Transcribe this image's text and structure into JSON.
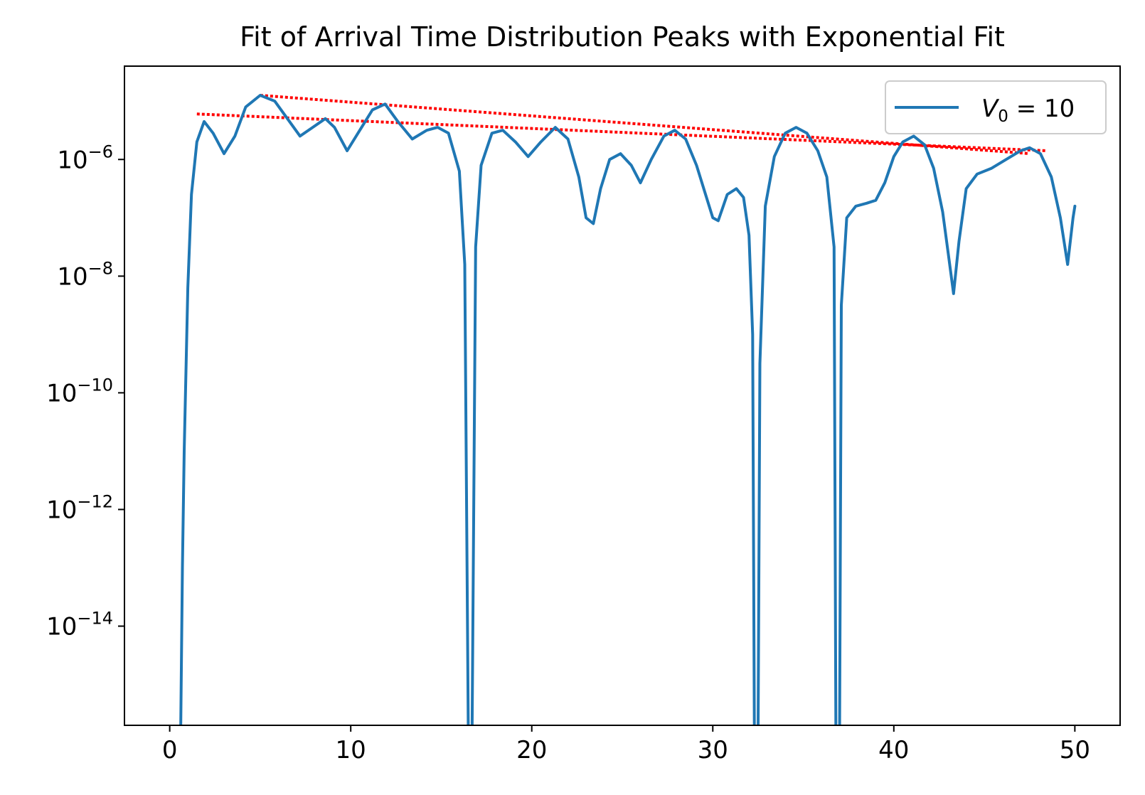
{
  "chart_data": {
    "type": "line",
    "title": "Fit of Arrival Time Distribution Peaks with Exponential Fit",
    "xlabel": "",
    "ylabel": "",
    "y_scale": "log",
    "xlim": [
      -2.5,
      52.5
    ],
    "ylim_log10": [
      -15.7,
      -4.4
    ],
    "x_ticks": [
      0,
      10,
      20,
      30,
      40,
      50
    ],
    "y_ticks": [
      {
        "exp": -6,
        "base": "10",
        "sup": "−6"
      },
      {
        "exp": -8,
        "base": "10",
        "sup": "−8"
      },
      {
        "exp": -10,
        "base": "10",
        "sup": "−10"
      },
      {
        "exp": -12,
        "base": "10",
        "sup": "−12"
      },
      {
        "exp": -14,
        "base": "10",
        "sup": "−14"
      }
    ],
    "legend": {
      "placement": "upper right",
      "label_prefix": "V",
      "label_sub": "0",
      "label_rest": " = 10"
    },
    "series": [
      {
        "name": "V0 = 10",
        "color": "#1f77b4",
        "log10_points": [
          [
            0.6,
            -16
          ],
          [
            0.7,
            -13.0
          ],
          [
            0.8,
            -11.0
          ],
          [
            1.0,
            -8.2
          ],
          [
            1.2,
            -6.6
          ],
          [
            1.5,
            -5.7
          ],
          [
            1.9,
            -5.35
          ],
          [
            2.4,
            -5.55
          ],
          [
            3.0,
            -5.9
          ],
          [
            3.6,
            -5.6
          ],
          [
            4.2,
            -5.1
          ],
          [
            5.0,
            -4.9
          ],
          [
            5.8,
            -5.0
          ],
          [
            6.5,
            -5.3
          ],
          [
            7.2,
            -5.6
          ],
          [
            7.9,
            -5.45
          ],
          [
            8.6,
            -5.3
          ],
          [
            9.1,
            -5.45
          ],
          [
            9.8,
            -5.85
          ],
          [
            10.5,
            -5.5
          ],
          [
            11.2,
            -5.15
          ],
          [
            11.9,
            -5.05
          ],
          [
            12.6,
            -5.35
          ],
          [
            13.4,
            -5.65
          ],
          [
            14.2,
            -5.5
          ],
          [
            14.8,
            -5.45
          ],
          [
            15.4,
            -5.55
          ],
          [
            16.0,
            -6.2
          ],
          [
            16.3,
            -7.8
          ],
          [
            16.5,
            -16
          ],
          [
            16.7,
            -16
          ],
          [
            16.9,
            -7.5
          ],
          [
            17.2,
            -6.1
          ],
          [
            17.8,
            -5.55
          ],
          [
            18.4,
            -5.5
          ],
          [
            19.1,
            -5.7
          ],
          [
            19.8,
            -5.95
          ],
          [
            20.5,
            -5.7
          ],
          [
            21.3,
            -5.45
          ],
          [
            22.0,
            -5.65
          ],
          [
            22.6,
            -6.3
          ],
          [
            23.0,
            -7.0
          ],
          [
            23.4,
            -7.1
          ],
          [
            23.8,
            -6.5
          ],
          [
            24.3,
            -6.0
          ],
          [
            24.9,
            -5.9
          ],
          [
            25.5,
            -6.1
          ],
          [
            26.0,
            -6.4
          ],
          [
            26.6,
            -6.0
          ],
          [
            27.3,
            -5.6
          ],
          [
            27.9,
            -5.5
          ],
          [
            28.5,
            -5.65
          ],
          [
            29.1,
            -6.1
          ],
          [
            29.6,
            -6.6
          ],
          [
            30.0,
            -7.0
          ],
          [
            30.3,
            -7.05
          ],
          [
            30.8,
            -6.6
          ],
          [
            31.3,
            -6.5
          ],
          [
            31.7,
            -6.65
          ],
          [
            32.0,
            -7.3
          ],
          [
            32.2,
            -9.0
          ],
          [
            32.3,
            -16
          ],
          [
            32.5,
            -16
          ],
          [
            32.6,
            -9.5
          ],
          [
            32.9,
            -6.8
          ],
          [
            33.4,
            -5.95
          ],
          [
            34.0,
            -5.55
          ],
          [
            34.6,
            -5.45
          ],
          [
            35.2,
            -5.55
          ],
          [
            35.8,
            -5.85
          ],
          [
            36.3,
            -6.3
          ],
          [
            36.7,
            -7.5
          ],
          [
            36.8,
            -16
          ],
          [
            37.0,
            -16
          ],
          [
            37.1,
            -8.5
          ],
          [
            37.4,
            -7.0
          ],
          [
            37.9,
            -6.8
          ],
          [
            38.5,
            -6.75
          ],
          [
            39.0,
            -6.7
          ],
          [
            39.5,
            -6.4
          ],
          [
            40.0,
            -5.95
          ],
          [
            40.5,
            -5.7
          ],
          [
            41.1,
            -5.6
          ],
          [
            41.7,
            -5.75
          ],
          [
            42.2,
            -6.15
          ],
          [
            42.7,
            -6.9
          ],
          [
            43.0,
            -7.6
          ],
          [
            43.3,
            -8.3
          ],
          [
            43.6,
            -7.4
          ],
          [
            44.0,
            -6.5
          ],
          [
            44.6,
            -6.25
          ],
          [
            45.4,
            -6.15
          ],
          [
            46.2,
            -6.0
          ],
          [
            47.0,
            -5.85
          ],
          [
            47.5,
            -5.8
          ],
          [
            48.1,
            -5.9
          ],
          [
            48.7,
            -6.3
          ],
          [
            49.2,
            -7.0
          ],
          [
            49.6,
            -7.8
          ],
          [
            49.9,
            -7.0
          ],
          [
            50.0,
            -6.8
          ]
        ]
      }
    ],
    "fit_lines": [
      {
        "color": "#ff0000",
        "style": "dotted",
        "x": [
          1.5,
          48.4
        ],
        "log10_y": [
          -5.22,
          -5.85
        ]
      },
      {
        "color": "#ff0000",
        "style": "dotted",
        "x": [
          5.0,
          47.5
        ],
        "log10_y": [
          -4.9,
          -5.9
        ]
      }
    ]
  }
}
